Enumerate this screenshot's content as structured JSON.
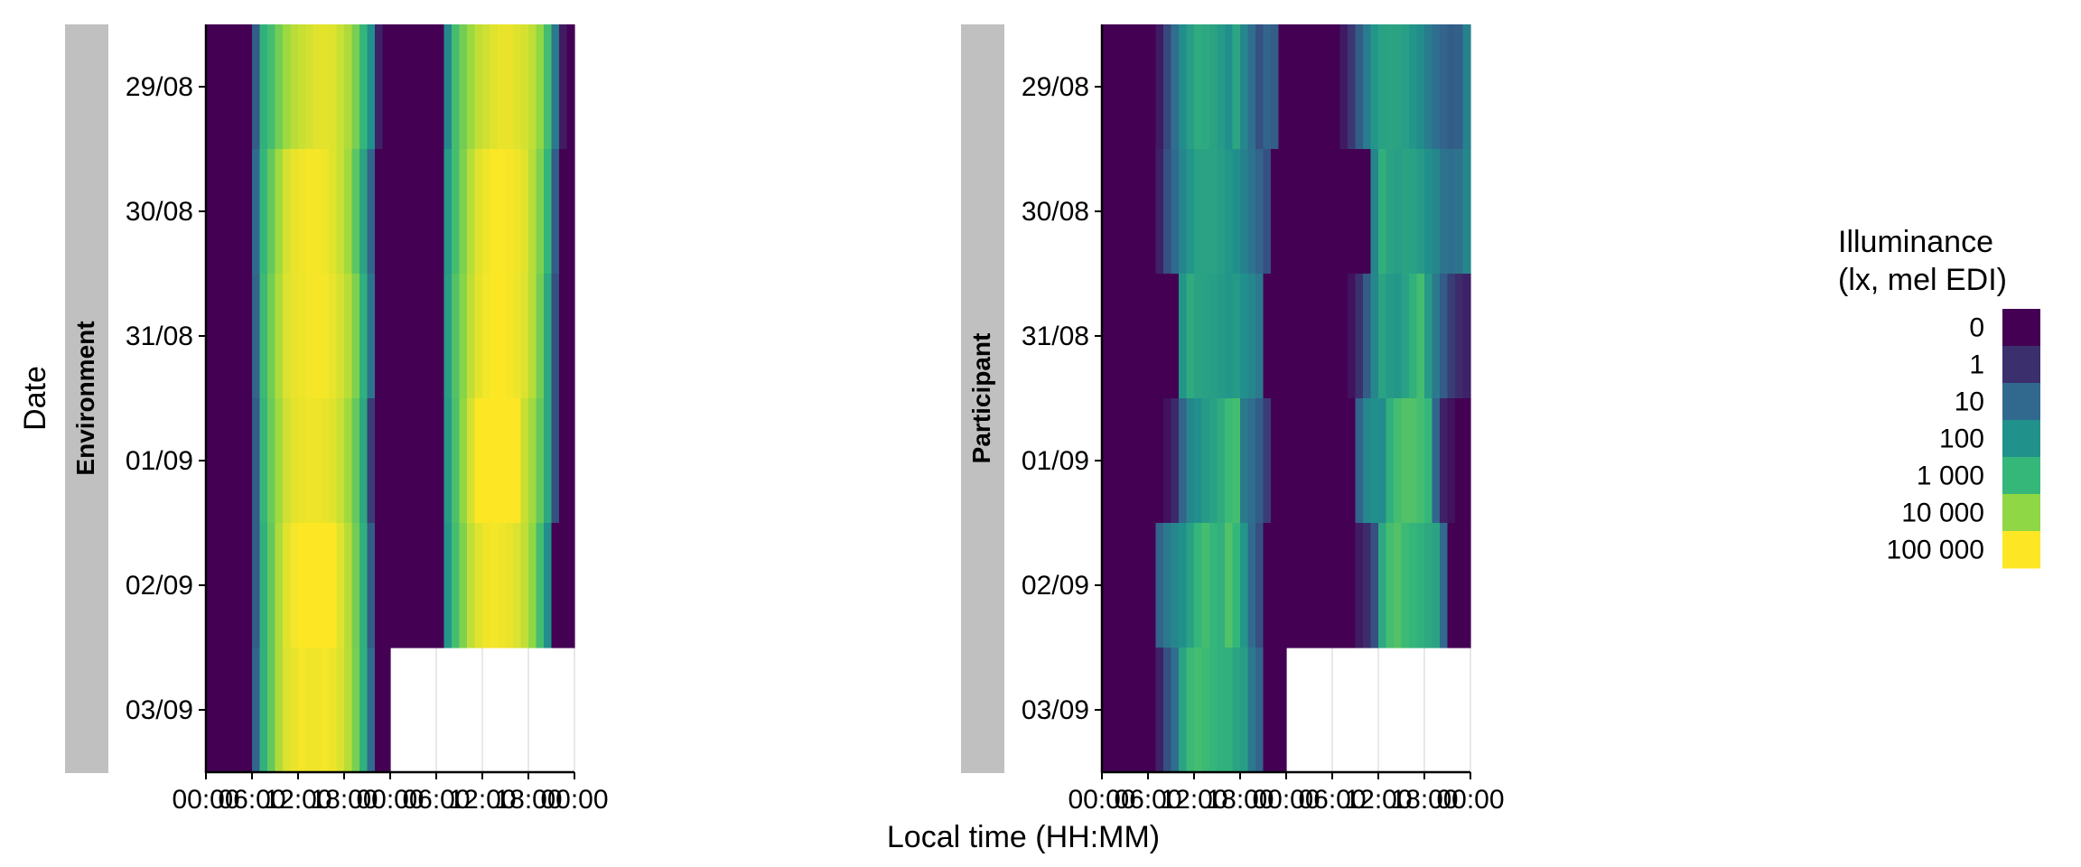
{
  "chart_data": {
    "type": "heatmap",
    "title": "",
    "xlabel": "Local time (HH:MM)",
    "ylabel": "Date",
    "x_ticks": [
      "00:00",
      "06:00",
      "12:00",
      "18:00",
      "00:00",
      "06:00",
      "12:00",
      "18:00",
      "00:00"
    ],
    "x_range_hours": [
      0,
      48
    ],
    "y_categories": [
      "29/08",
      "30/08",
      "31/08",
      "01/09",
      "02/09",
      "03/09"
    ],
    "bin_hours": 1,
    "layout_note": "double plot: hours 0-23 are the row's date, hours 24-47 are the following date; null = no data",
    "legend": {
      "title": [
        "Illuminance",
        "(lx, mel EDI)"
      ],
      "position": "right",
      "scale": "log10(lx + 1)",
      "labels": [
        "0",
        "1",
        "10",
        "100",
        "1 000",
        "10 000",
        "100 000"
      ],
      "breaks": [
        0,
        1,
        10,
        100,
        1000,
        10000,
        100000
      ],
      "palette": [
        "#440154",
        "#3b2f6e",
        "#31688e",
        "#21918c",
        "#35b779",
        "#8fd744",
        "#fde725"
      ]
    },
    "panels": [
      {
        "name": "Environment",
        "rows": [
          {
            "date": "29/08",
            "values": [
              0,
              0,
              0,
              0,
              0,
              0,
              30,
              1500,
              3000,
              8000,
              18000,
              30000,
              40000,
              50000,
              60000,
              65000,
              60000,
              40000,
              25000,
              9000,
              2000,
              300,
              3,
              0,
              0,
              0,
              0,
              0,
              0,
              0,
              0,
              200,
              3000,
              8000,
              18000,
              35000,
              45000,
              60000,
              70000,
              70000,
              60000,
              50000,
              35000,
              15000,
              3000,
              100,
              2,
              0
            ]
          },
          {
            "date": "30/08",
            "values": [
              0,
              0,
              0,
              0,
              0,
              0,
              50,
              2000,
              6000,
              20000,
              50000,
              70000,
              80000,
              90000,
              85000,
              80000,
              60000,
              40000,
              20000,
              5000,
              800,
              40,
              0,
              0,
              0,
              0,
              0,
              0,
              0,
              0,
              0,
              500,
              3000,
              10000,
              30000,
              60000,
              80000,
              95000,
              95000,
              90000,
              80000,
              60000,
              30000,
              10000,
              2000,
              30,
              0,
              0
            ]
          },
          {
            "date": "31/08",
            "values": [
              0,
              0,
              0,
              0,
              0,
              0,
              40,
              2500,
              8000,
              25000,
              55000,
              70000,
              75000,
              85000,
              90000,
              85000,
              70000,
              50000,
              30000,
              10000,
              1500,
              80,
              0,
              0,
              0,
              0,
              0,
              0,
              0,
              0,
              0,
              600,
              4000,
              12000,
              35000,
              65000,
              85000,
              95000,
              100000,
              90000,
              75000,
              55000,
              30000,
              8000,
              1000,
              20,
              0,
              0
            ]
          },
          {
            "date": "01/09",
            "values": [
              0,
              0,
              0,
              0,
              0,
              0,
              30,
              2000,
              7000,
              20000,
              45000,
              65000,
              70000,
              80000,
              75000,
              70000,
              60000,
              40000,
              20000,
              6000,
              1000,
              10,
              0,
              0,
              0,
              0,
              0,
              0,
              0,
              0,
              0,
              500,
              3500,
              15000,
              50000,
              100000,
              100000,
              100000,
              100000,
              100000,
              100000,
              40000,
              20000,
              6000,
              1000,
              20,
              0,
              0
            ]
          },
          {
            "date": "02/09",
            "values": [
              0,
              0,
              0,
              0,
              0,
              0,
              30,
              1500,
              6000,
              25000,
              60000,
              85000,
              100000,
              100000,
              100000,
              100000,
              100000,
              60000,
              30000,
              8000,
              1500,
              30,
              0,
              0,
              0,
              0,
              0,
              0,
              0,
              0,
              0,
              400,
              3000,
              10000,
              35000,
              60000,
              80000,
              85000,
              80000,
              70000,
              55000,
              35000,
              15000,
              3000,
              300,
              0,
              0,
              0
            ]
          },
          {
            "date": "03/09",
            "values": [
              0,
              0,
              0,
              0,
              0,
              0,
              40,
              1500,
              6000,
              25000,
              55000,
              70000,
              85000,
              80000,
              80000,
              85000,
              75000,
              55000,
              30000,
              9000,
              1500,
              50,
              0,
              0,
              null,
              null,
              null,
              null,
              null,
              null,
              null,
              null,
              null,
              null,
              null,
              null,
              null,
              null,
              null,
              null,
              null,
              null,
              null,
              null,
              null,
              null,
              null,
              null
            ]
          }
        ]
      },
      {
        "name": "Participant",
        "rows": [
          {
            "date": "29/08",
            "values": [
              0,
              0,
              0,
              0,
              0,
              0,
              0,
              2,
              15,
              60,
              250,
              600,
              1200,
              1000,
              800,
              500,
              300,
              900,
              200,
              60,
              20,
              40,
              30,
              0,
              0,
              0,
              0,
              0,
              0,
              0,
              0,
              2,
              8,
              30,
              120,
              400,
              700,
              800,
              800,
              600,
              400,
              250,
              120,
              60,
              40,
              30,
              35,
              150
            ]
          },
          {
            "date": "30/08",
            "values": [
              0,
              0,
              0,
              0,
              0,
              0,
              0,
              3,
              20,
              50,
              180,
              400,
              700,
              800,
              750,
              600,
              400,
              300,
              150,
              80,
              40,
              20,
              0,
              0,
              0,
              0,
              0,
              0,
              0,
              0,
              0,
              0,
              0,
              0,
              0,
              200,
              1500,
              800,
              600,
              800,
              700,
              500,
              300,
              200,
              80,
              60,
              80,
              200
            ]
          },
          {
            "date": "31/08",
            "values": [
              0,
              0,
              0,
              0,
              0,
              0,
              0,
              0,
              0,
              0,
              400,
              1200,
              800,
              700,
              600,
              500,
              400,
              500,
              300,
              200,
              100,
              0,
              0,
              0,
              0,
              0,
              0,
              0,
              0,
              0,
              0,
              0,
              1,
              6,
              30,
              200,
              800,
              500,
              400,
              700,
              1500,
              3000,
              500,
              100,
              30,
              10,
              5,
              3
            ]
          },
          {
            "date": "01/09",
            "values": [
              0,
              0,
              0,
              0,
              0,
              0,
              0,
              0,
              1,
              4,
              40,
              200,
              300,
              500,
              700,
              1200,
              2500,
              3000,
              100,
              60,
              30,
              10,
              0,
              0,
              0,
              0,
              0,
              0,
              0,
              0,
              0,
              0,
              0,
              40,
              200,
              300,
              250,
              1500,
              3000,
              4000,
              4000,
              3000,
              2000,
              40,
              3,
              1,
              0,
              0
            ]
          },
          {
            "date": "02/09",
            "values": [
              0,
              0,
              0,
              0,
              0,
              0,
              0,
              40,
              100,
              200,
              300,
              700,
              2000,
              3000,
              2000,
              1500,
              4000,
              2000,
              400,
              50,
              20,
              0,
              0,
              0,
              0,
              0,
              0,
              0,
              0,
              0,
              0,
              0,
              0,
              2,
              5,
              20,
              1000,
              3000,
              4000,
              2500,
              2000,
              1500,
              1000,
              800,
              50,
              0,
              0,
              0
            ]
          },
          {
            "date": "03/09",
            "values": [
              0,
              0,
              0,
              0,
              0,
              0,
              0,
              3,
              20,
              60,
              800,
              2500,
              3000,
              2500,
              2000,
              1500,
              1500,
              800,
              600,
              100,
              40,
              0,
              0,
              0,
              null,
              null,
              null,
              null,
              null,
              null,
              null,
              null,
              null,
              null,
              null,
              null,
              null,
              null,
              null,
              null,
              null,
              null,
              null,
              null,
              null,
              null,
              null,
              null
            ]
          }
        ]
      }
    ]
  }
}
